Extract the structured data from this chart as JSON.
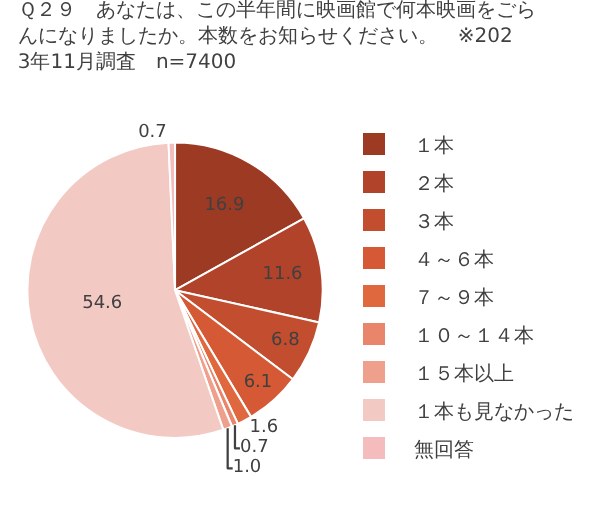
{
  "chart_data": {
    "type": "pie",
    "title": "Ｑ２９　あなたは、この半年間に映画館で何本映画をごらんになりましたか。本数をお知らせください。　※2023年11月調査　n=7400",
    "categories": [
      "１本",
      "２本",
      "３本",
      "４～６本",
      "７～９本",
      "１０～１４本",
      "１５本以上",
      "１本も見なかった",
      "無回答"
    ],
    "values": [
      16.9,
      11.6,
      6.8,
      6.1,
      1.6,
      0.7,
      1.0,
      54.6,
      0.7
    ],
    "colors": [
      "#9c3a24",
      "#b0432a",
      "#c24d2f",
      "#d45934",
      "#e0683f",
      "#e8856a",
      "#efa08c",
      "#f3c9c4",
      "#f4bcbc"
    ],
    "value_labels": [
      "16.9",
      "11.6",
      "6.8",
      "6.1",
      "1.6",
      "0.7",
      "1.0",
      "54.6",
      "0.7"
    ],
    "legend": "right"
  }
}
